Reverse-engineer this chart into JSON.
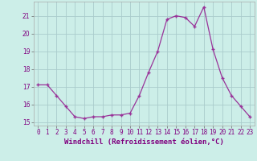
{
  "x": [
    0,
    1,
    2,
    3,
    4,
    5,
    6,
    7,
    8,
    9,
    10,
    11,
    12,
    13,
    14,
    15,
    16,
    17,
    18,
    19,
    20,
    21,
    22,
    23
  ],
  "y": [
    17.1,
    17.1,
    16.5,
    15.9,
    15.3,
    15.2,
    15.3,
    15.3,
    15.4,
    15.4,
    15.5,
    16.5,
    17.8,
    19.0,
    20.8,
    21.0,
    20.9,
    20.4,
    21.5,
    19.1,
    17.5,
    16.5,
    15.9,
    15.3
  ],
  "line_color": "#993399",
  "marker": "+",
  "marker_size": 3.5,
  "linewidth": 0.9,
  "bg_color": "#cceee8",
  "grid_color": "#aacccc",
  "xlabel": "Windchill (Refroidissement éolien,°C)",
  "ylim": [
    14.8,
    21.8
  ],
  "xlim": [
    -0.5,
    23.5
  ],
  "yticks": [
    15,
    16,
    17,
    18,
    19,
    20,
    21
  ],
  "xticks": [
    0,
    1,
    2,
    3,
    4,
    5,
    6,
    7,
    8,
    9,
    10,
    11,
    12,
    13,
    14,
    15,
    16,
    17,
    18,
    19,
    20,
    21,
    22,
    23
  ],
  "tick_fontsize": 5.5,
  "xlabel_fontsize": 6.5
}
